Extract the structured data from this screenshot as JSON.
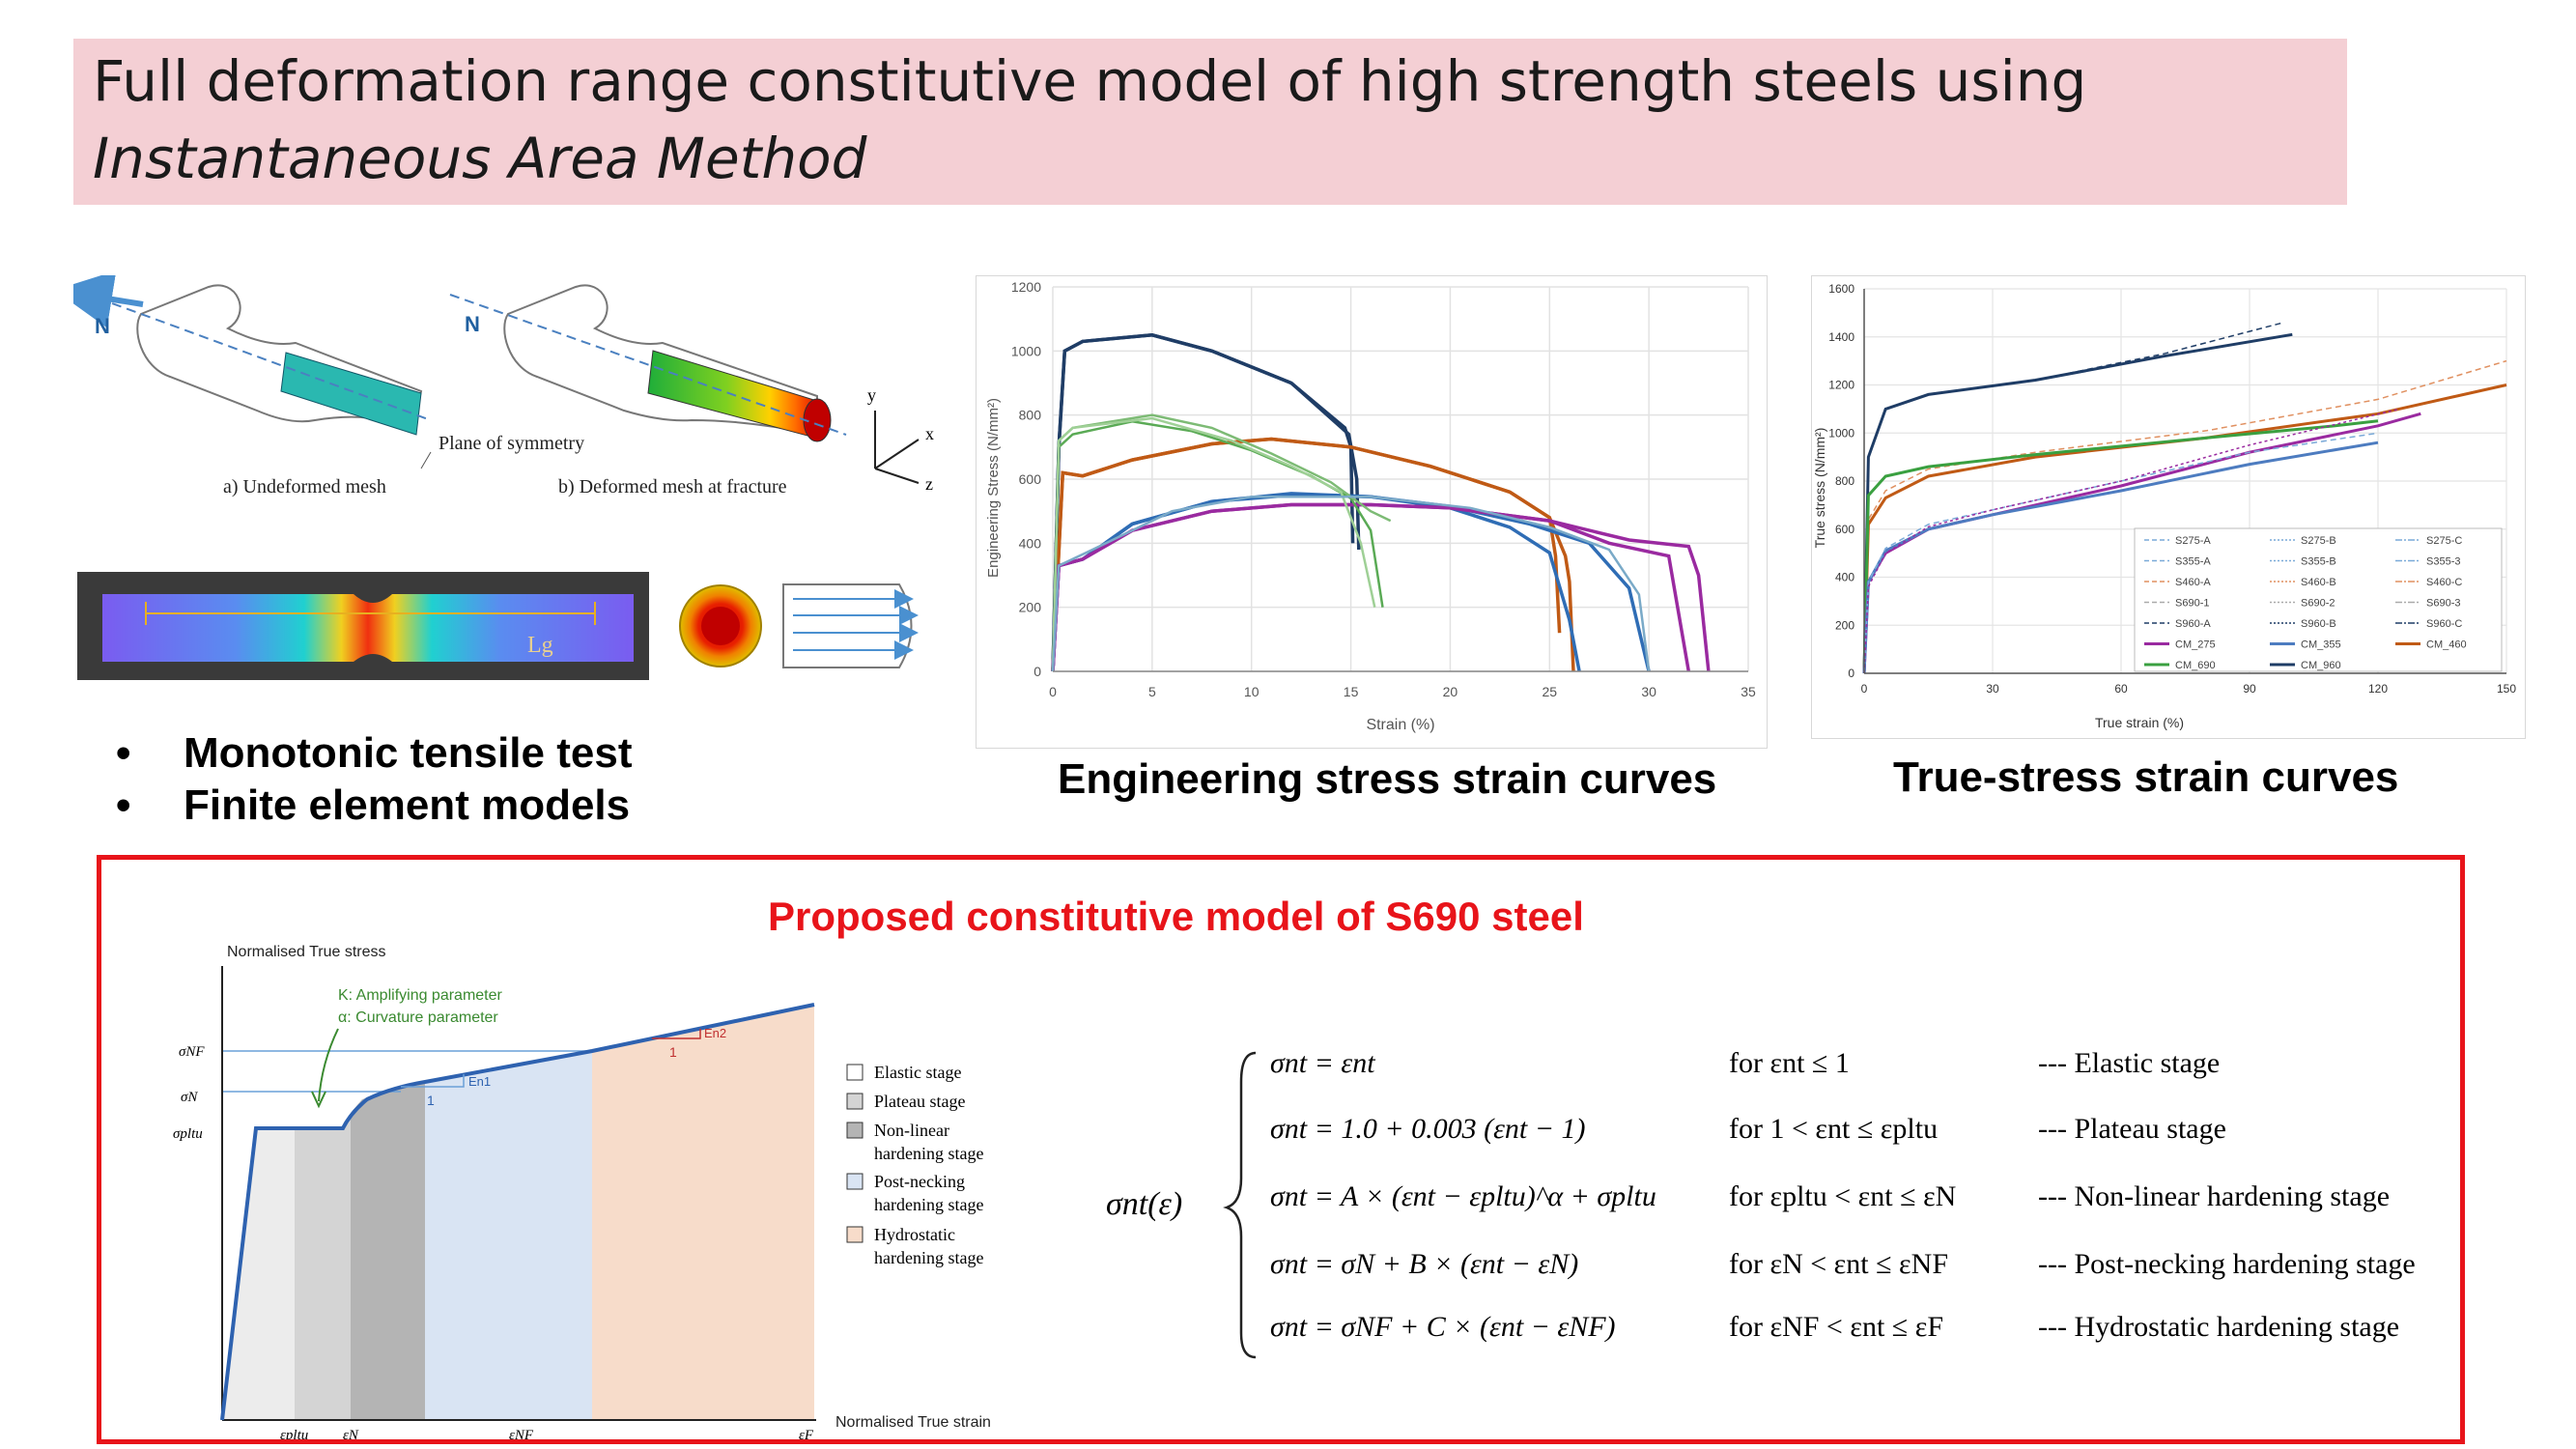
{
  "title": {
    "line1": "Full deformation range constitutive model of high strength steels using",
    "line2": "Instantaneous Area Method"
  },
  "fe_model": {
    "n_label": "N",
    "caption_a": "a)  Undeformed mesh",
    "caption_b": "b)  Deformed mesh at fracture",
    "plane_label": "Plane of symmetry",
    "axis_y": "y",
    "axis_x": "x",
    "axis_z": "z",
    "gauge_label": "Lg"
  },
  "bullets": [
    "Monotonic tensile test",
    "Finite element models"
  ],
  "captions": {
    "engineering": "Engineering stress strain curves",
    "true": "True-stress strain curves"
  },
  "eng_chart": {
    "xlabel": "Strain (%)",
    "ylabel": "Engineering Stress (N/mm²)",
    "xticks": [
      "0",
      "5",
      "10",
      "15",
      "20",
      "25",
      "30",
      "35"
    ],
    "yticks": [
      "0",
      "200",
      "400",
      "600",
      "800",
      "1000",
      "1200"
    ],
    "xlim": [
      0,
      35
    ],
    "ylim": [
      0,
      1200
    ]
  },
  "true_chart": {
    "xlabel": "True strain (%)",
    "ylabel": "True stress (N/mm²)",
    "xticks": [
      "0",
      "30",
      "60",
      "90",
      "120",
      "150"
    ],
    "yticks": [
      "0",
      "200",
      "400",
      "600",
      "800",
      "1000",
      "1200",
      "1400",
      "1600"
    ],
    "xlim": [
      0,
      150
    ],
    "ylim": [
      0,
      1600
    ],
    "legend": [
      "S275-A",
      "S275-B",
      "S275-C",
      "S355-A",
      "S355-B",
      "S355-3",
      "S460-A",
      "S460-B",
      "S460-C",
      "S690-1",
      "S690-2",
      "S690-3",
      "S960-A",
      "S960-B",
      "S960-C",
      "CM_275",
      "CM_355",
      "CM_460",
      "CM_690",
      "CM_960"
    ]
  },
  "model": {
    "title": "Proposed constitutive model of S690 steel",
    "y_axis_label": "Normalised True stress",
    "x_axis_label": "Normalised True strain",
    "k_label": "K: Amplifying parameter",
    "alpha_label": "α: Curvature parameter",
    "legend": [
      "Elastic stage",
      "Plateau stage",
      "Non-linear hardening stage",
      "Post-necking hardening stage",
      "Hydrostatic hardening stage"
    ],
    "y_ticks": [
      "σNF",
      "σN",
      "σpltu"
    ],
    "x_ticks": [
      "εpltu",
      "εN",
      "εNF",
      "εF"
    ],
    "slope_labels": [
      "1",
      "En1",
      "1",
      "En2"
    ],
    "lhs": "σnt(ε)",
    "equations": [
      {
        "eq": "σnt = εnt",
        "cond": "for   εnt ≤ 1",
        "stage": "--- Elastic stage"
      },
      {
        "eq": "σnt = 1.0 + 0.003 (εnt − 1)",
        "cond": "for   1 < εnt ≤ εpltu",
        "stage": "--- Plateau stage"
      },
      {
        "eq": "σnt = A × (εnt − εpltu)^α + σpltu",
        "cond": "for   εpltu < εnt ≤ εN",
        "stage": "--- Non-linear hardening stage"
      },
      {
        "eq": "σnt = σN + B × (εnt − εN)",
        "cond": "for   εN < εnt ≤ εNF",
        "stage": "--- Post-necking hardening stage"
      },
      {
        "eq": "σnt = σNF + C × (εnt − εNF)",
        "cond": "for   εNF < εnt ≤ εF",
        "stage": "--- Hydrostatic hardening stage"
      }
    ]
  },
  "colors": {
    "title_bg": "#f4cfd4",
    "box_red": "#e8141a",
    "curve_blue": "#2e62b0"
  }
}
